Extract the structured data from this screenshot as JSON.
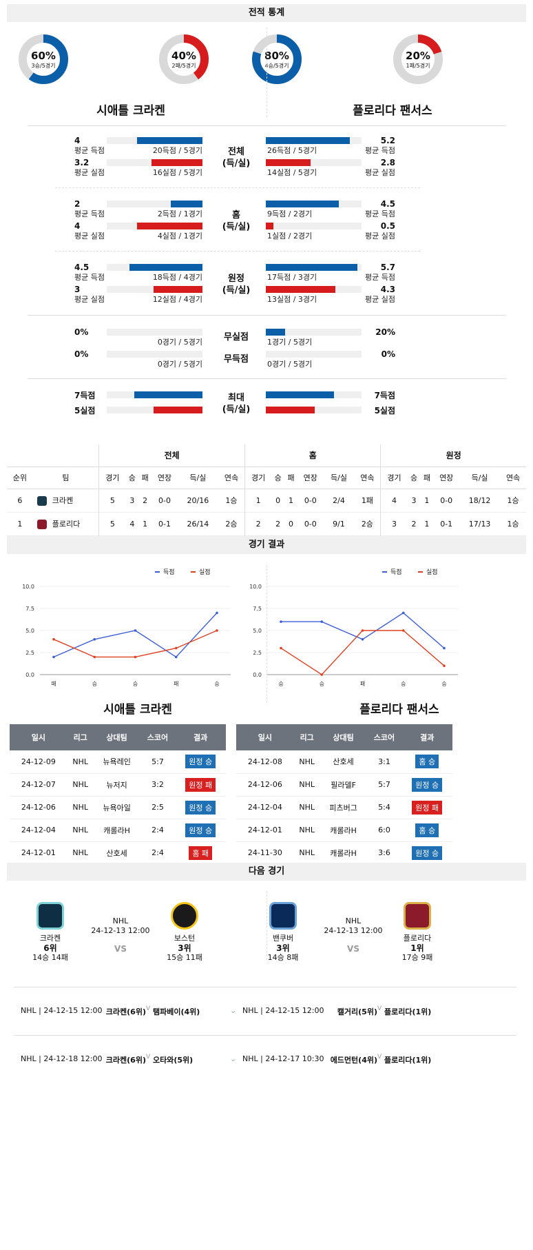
{
  "sections": {
    "stats": "전적 통계",
    "results": "경기 결과",
    "next": "다음 경기"
  },
  "teams": {
    "home": "시애틀 크라켄",
    "away": "플로리다 팬서스"
  },
  "donuts": [
    {
      "pct": "60%",
      "sub": "3승/5경기",
      "value": 0.6,
      "color": "#0b5ea8"
    },
    {
      "pct": "40%",
      "sub": "2패/5경기",
      "value": 0.4,
      "color": "#d61c1c"
    },
    {
      "pct": "80%",
      "sub": "4승/5경기",
      "value": 0.8,
      "color": "#0b5ea8"
    },
    {
      "pct": "20%",
      "sub": "1패/5경기",
      "value": 0.2,
      "color": "#d61c1c"
    }
  ],
  "compare": [
    {
      "mid": [
        "전체",
        "(득/실)"
      ],
      "rows": [
        {
          "lv": "4",
          "ll": "평균 득점",
          "lt": "20득점 / 5경기",
          "lf": 0.68,
          "rv": "5.2",
          "rl": "평균 득점",
          "rt": "26득점 / 5경기",
          "rf": 0.88,
          "c": "blue"
        },
        {
          "lv": "3.2",
          "ll": "평균 실점",
          "lt": "16실점 / 5경기",
          "lf": 0.53,
          "rv": "2.8",
          "rl": "평균 실점",
          "rt": "14실점 / 5경기",
          "rf": 0.47,
          "c": "red"
        }
      ]
    },
    {
      "mid": [
        "홈",
        "(득/실)"
      ],
      "rows": [
        {
          "lv": "2",
          "ll": "평균 득점",
          "lt": "2득점 / 1경기",
          "lf": 0.33,
          "rv": "4.5",
          "rl": "평균 득점",
          "rt": "9득점 / 2경기",
          "rf": 0.76,
          "c": "blue"
        },
        {
          "lv": "4",
          "ll": "평균 실점",
          "lt": "4실점 / 1경기",
          "lf": 0.68,
          "rv": "0.5",
          "rl": "평균 실점",
          "rt": "1실점 / 2경기",
          "rf": 0.08,
          "c": "red"
        }
      ]
    },
    {
      "mid": [
        "원정",
        "(득/실)"
      ],
      "rows": [
        {
          "lv": "4.5",
          "ll": "평균 득점",
          "lt": "18득점 / 4경기",
          "lf": 0.76,
          "rv": "5.7",
          "rl": "평균 득점",
          "rt": "17득점 / 3경기",
          "rf": 0.96,
          "c": "blue"
        },
        {
          "lv": "3",
          "ll": "평균 실점",
          "lt": "12실점 / 4경기",
          "lf": 0.51,
          "rv": "4.3",
          "rl": "평균 실점",
          "rt": "13실점 / 3경기",
          "rf": 0.73,
          "c": "red"
        }
      ]
    }
  ],
  "shutout": [
    {
      "mid": "무실점",
      "lv": "0%",
      "lt": "0경기 / 5경기",
      "lf": 0,
      "rv": "20%",
      "rt": "1경기 / 5경기",
      "rf": 0.2
    },
    {
      "mid": "무득점",
      "lv": "0%",
      "lt": "0경기 / 5경기",
      "lf": 0,
      "rv": "0%",
      "rt": "0경기 / 5경기",
      "rf": 0
    }
  ],
  "max": {
    "mid": [
      "최대",
      "(득/실)"
    ],
    "rows": [
      {
        "lv": "7득점",
        "lf": 0.71,
        "rv": "7득점",
        "rf": 0.71,
        "c": "blue"
      },
      {
        "lv": "5실점",
        "lf": 0.51,
        "rv": "5실점",
        "rf": 0.51,
        "c": "red"
      }
    ]
  },
  "standings": {
    "groups": [
      "전체",
      "홈",
      "원정"
    ],
    "cols": [
      "순위",
      "팀",
      "경기",
      "승",
      "패",
      "연장",
      "득/실",
      "연속",
      "경기",
      "승",
      "패",
      "연장",
      "득/실",
      "연속",
      "경기",
      "승",
      "패",
      "연장",
      "득/실",
      "연속"
    ],
    "rows": [
      [
        "6",
        "크라켄",
        "5",
        "3",
        "2",
        "0-0",
        "20/16",
        "1승",
        "1",
        "0",
        "1",
        "0-0",
        "2/4",
        "1패",
        "4",
        "3",
        "1",
        "0-0",
        "18/12",
        "1승"
      ],
      [
        "1",
        "플로리다",
        "5",
        "4",
        "1",
        "0-1",
        "26/14",
        "2승",
        "2",
        "2",
        "0",
        "0-0",
        "9/1",
        "2승",
        "3",
        "2",
        "1",
        "0-1",
        "17/13",
        "1승"
      ]
    ]
  },
  "chart_data": [
    {
      "type": "line",
      "categories": [
        "패",
        "승",
        "승",
        "패",
        "승"
      ],
      "ylim": [
        0,
        10
      ],
      "yticks": [
        "0.0",
        "2.5",
        "5.0",
        "7.5",
        "10.0"
      ],
      "series": [
        {
          "name": "득점",
          "values": [
            2,
            4,
            5,
            2,
            7
          ],
          "color": "#3b5ed7"
        },
        {
          "name": "실점",
          "values": [
            4,
            2,
            2,
            3,
            5
          ],
          "color": "#e0401f"
        }
      ]
    },
    {
      "type": "line",
      "categories": [
        "승",
        "승",
        "패",
        "승",
        "승"
      ],
      "ylim": [
        0,
        10
      ],
      "yticks": [
        "0.0",
        "2.5",
        "5.0",
        "7.5",
        "10.0"
      ],
      "series": [
        {
          "name": "득점",
          "values": [
            6,
            6,
            4,
            7,
            3
          ],
          "color": "#3b5ed7"
        },
        {
          "name": "실점",
          "values": [
            3,
            0,
            5,
            5,
            1
          ],
          "color": "#e0401f"
        }
      ]
    }
  ],
  "results_cols": [
    "일시",
    "리그",
    "상대팀",
    "스코어",
    "결과"
  ],
  "results": [
    [
      [
        "24-12-09",
        "NHL",
        "뉴욕레인",
        "5:7",
        "원정 승",
        "blue"
      ],
      [
        "24-12-07",
        "NHL",
        "뉴저지",
        "3:2",
        "원정 패",
        "red"
      ],
      [
        "24-12-06",
        "NHL",
        "뉴욕아일",
        "2:5",
        "원정 승",
        "blue"
      ],
      [
        "24-12-04",
        "NHL",
        "캐롤라H",
        "2:4",
        "원정 승",
        "blue"
      ],
      [
        "24-12-01",
        "NHL",
        "산호세",
        "2:4",
        "홈 패",
        "red"
      ]
    ],
    [
      [
        "24-12-08",
        "NHL",
        "산호세",
        "3:1",
        "홈 승",
        "blue"
      ],
      [
        "24-12-06",
        "NHL",
        "필라델F",
        "5:7",
        "원정 승",
        "blue"
      ],
      [
        "24-12-04",
        "NHL",
        "피츠버그",
        "5:4",
        "원정 패",
        "red"
      ],
      [
        "24-12-01",
        "NHL",
        "캐롤라H",
        "6:0",
        "홈 승",
        "blue"
      ],
      [
        "24-11-30",
        "NHL",
        "캐롤라H",
        "3:6",
        "원정 승",
        "blue"
      ]
    ]
  ],
  "next_matches": [
    {
      "league": "NHL",
      "date": "24-12-13 12:00",
      "vs": "VS",
      "a": {
        "name": "크라켄",
        "rank": "6위",
        "rec": "14승 14패"
      },
      "b": {
        "name": "보스턴",
        "rank": "3위",
        "rec": "15승 11패"
      }
    },
    {
      "league": "NHL",
      "date": "24-12-13 12:00",
      "vs": "VS",
      "a": {
        "name": "밴쿠버",
        "rank": "3위",
        "rec": "14승 8패"
      },
      "b": {
        "name": "플로리다",
        "rank": "1위",
        "rec": "17승 9패"
      }
    }
  ],
  "upcoming": [
    {
      "l": "NHL | 24-12-15 12:00",
      "t1": "크라켄(6위)",
      "t2": "탬파베이(4위)",
      "r": "NHL | 24-12-15 12:00",
      "r1": "캘거리(5위)",
      "r2": "플로리다(1위)"
    },
    {
      "l": "NHL | 24-12-18 12:00",
      "t1": "크라켄(6위)",
      "t2": "오타와(5위)",
      "r": "NHL | 24-12-17 10:30",
      "r1": "에드먼턴(4위)",
      "r2": "플로리다(1위)"
    }
  ]
}
